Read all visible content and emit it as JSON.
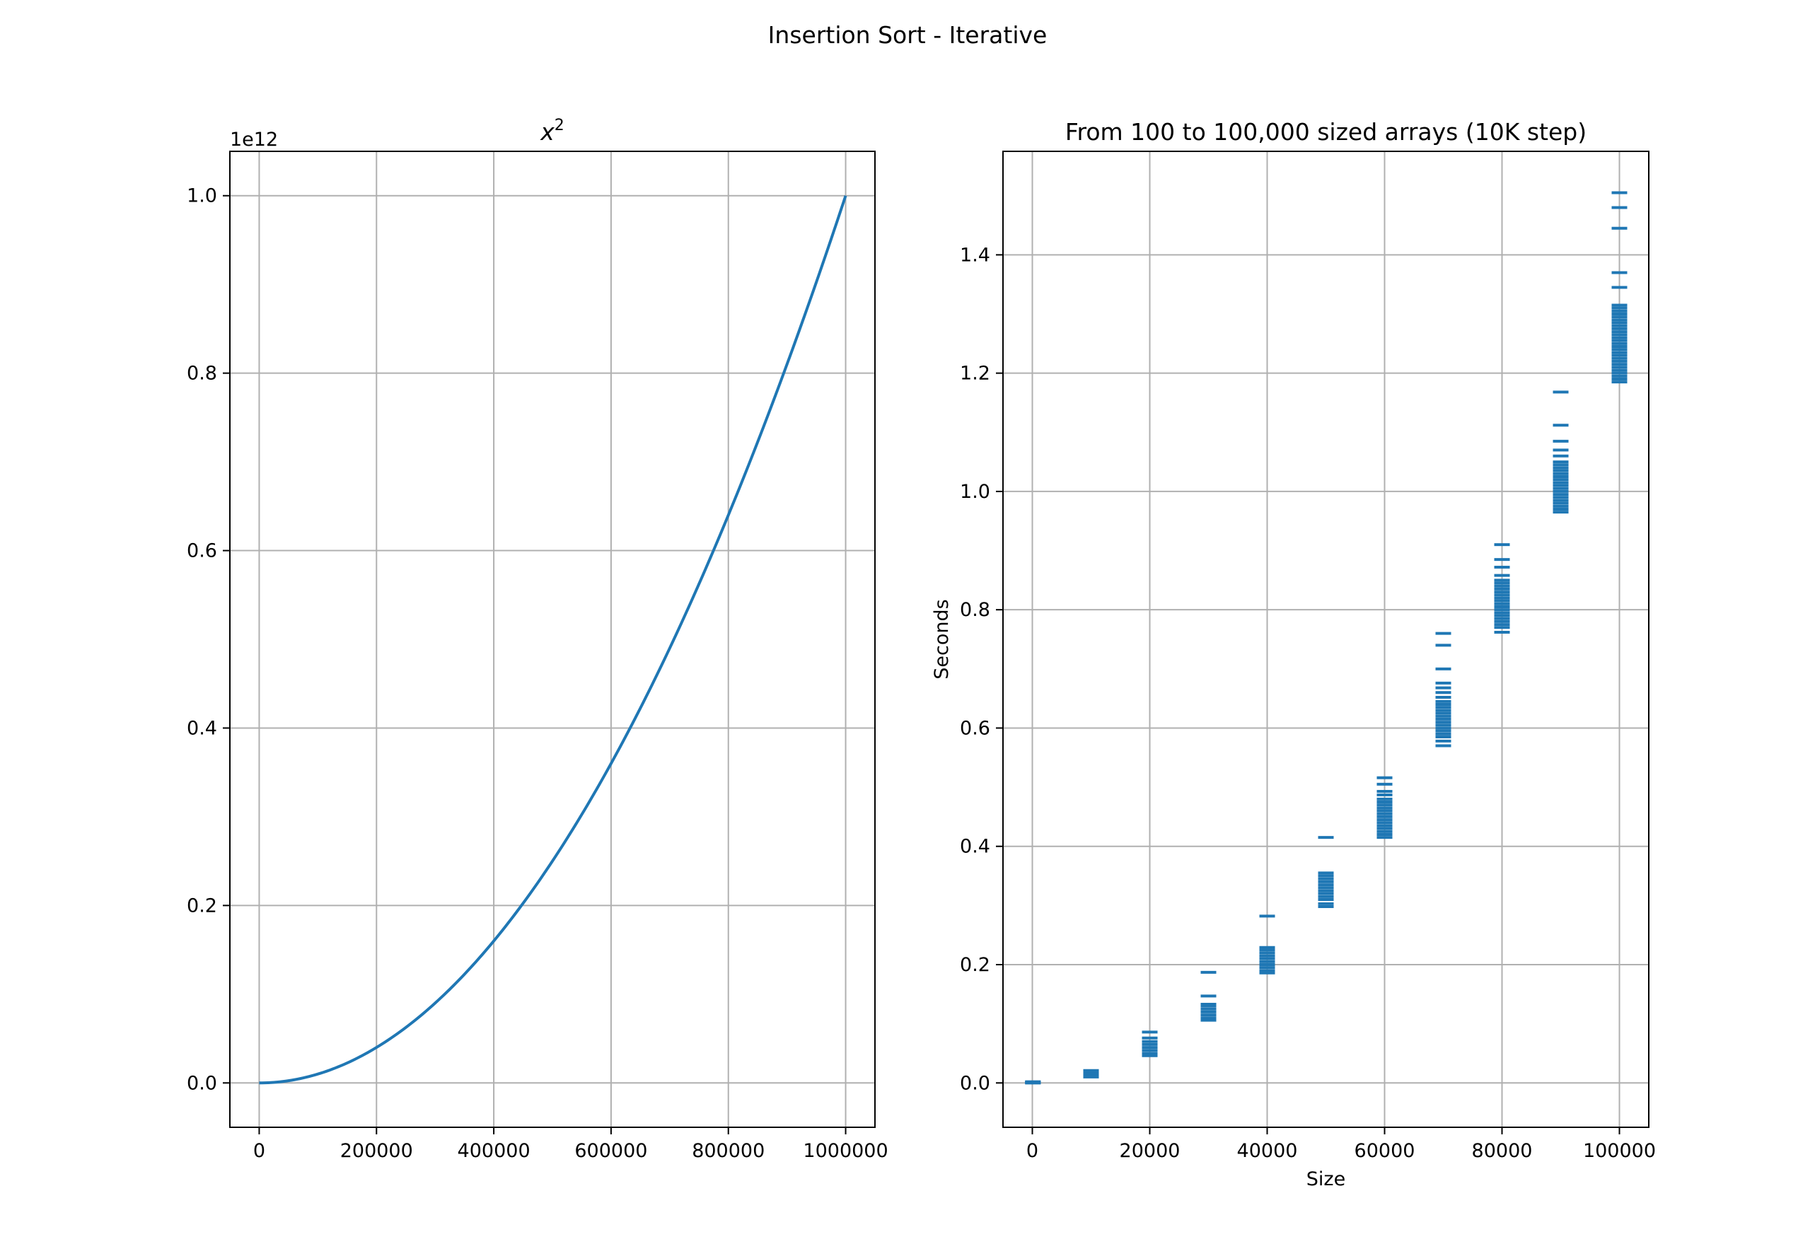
{
  "figure": {
    "title": "Insertion Sort - Iterative"
  },
  "chart_data": [
    {
      "type": "line",
      "title": "x²",
      "title_base": "x",
      "title_sup": "2",
      "xlabel": "",
      "ylabel": "",
      "y_offset_label": "1e12",
      "xlim": [
        -50000,
        1050000
      ],
      "ylim": [
        -0.05,
        1.05
      ],
      "xticks": [
        0,
        200000,
        400000,
        600000,
        800000,
        1000000
      ],
      "xtick_labels": [
        "0",
        "200000",
        "400000",
        "600000",
        "800000",
        "1000000"
      ],
      "yticks": [
        0.0,
        0.2,
        0.4,
        0.6,
        0.8,
        1.0
      ],
      "ytick_labels": [
        "0.0",
        "0.2",
        "0.4",
        "0.6",
        "0.8",
        "1.0"
      ],
      "grid": true,
      "color": "#1f77b4",
      "function": "x^2",
      "x_range": [
        0,
        1000000
      ]
    },
    {
      "type": "scatter",
      "title": "From 100 to 100,000 sized arrays (10K step)",
      "xlabel": "Size",
      "ylabel": "Seconds",
      "xlim": [
        -5000,
        105000
      ],
      "ylim": [
        -0.075,
        1.575
      ],
      "xticks": [
        0,
        20000,
        40000,
        60000,
        80000,
        100000
      ],
      "xtick_labels": [
        "0",
        "20000",
        "40000",
        "60000",
        "80000",
        "100000"
      ],
      "yticks": [
        0.0,
        0.2,
        0.4,
        0.6,
        0.8,
        1.0,
        1.2,
        1.4
      ],
      "ytick_labels": [
        "0.0",
        "0.2",
        "0.4",
        "0.6",
        "0.8",
        "1.0",
        "1.2",
        "1.4"
      ],
      "grid": true,
      "color": "#1f77b4",
      "marker": "_",
      "groups": [
        {
          "x": 100,
          "y": [
            0.0,
            0.001,
            0.002,
            0.001,
            0.0,
            0.001
          ]
        },
        {
          "x": 10000,
          "y": [
            0.01,
            0.013,
            0.016,
            0.019,
            0.021,
            0.015,
            0.012
          ]
        },
        {
          "x": 20000,
          "y": [
            0.046,
            0.05,
            0.055,
            0.06,
            0.065,
            0.07,
            0.076,
            0.086
          ]
        },
        {
          "x": 30000,
          "y": [
            0.106,
            0.11,
            0.115,
            0.12,
            0.125,
            0.13,
            0.133,
            0.147,
            0.187
          ]
        },
        {
          "x": 40000,
          "y": [
            0.186,
            0.19,
            0.195,
            0.2,
            0.205,
            0.21,
            0.215,
            0.22,
            0.225,
            0.229,
            0.282
          ]
        },
        {
          "x": 50000,
          "y": [
            0.298,
            0.303,
            0.31,
            0.315,
            0.32,
            0.325,
            0.33,
            0.335,
            0.34,
            0.345,
            0.35,
            0.355,
            0.415
          ]
        },
        {
          "x": 60000,
          "y": [
            0.415,
            0.42,
            0.425,
            0.43,
            0.435,
            0.44,
            0.445,
            0.45,
            0.455,
            0.46,
            0.465,
            0.47,
            0.475,
            0.48,
            0.487,
            0.493,
            0.505,
            0.516
          ]
        },
        {
          "x": 70000,
          "y": [
            0.57,
            0.578,
            0.585,
            0.59,
            0.595,
            0.6,
            0.605,
            0.61,
            0.615,
            0.62,
            0.625,
            0.63,
            0.635,
            0.64,
            0.645,
            0.652,
            0.66,
            0.668,
            0.676,
            0.7,
            0.74,
            0.76
          ]
        },
        {
          "x": 80000,
          "y": [
            0.762,
            0.77,
            0.775,
            0.78,
            0.785,
            0.79,
            0.795,
            0.8,
            0.805,
            0.81,
            0.815,
            0.82,
            0.825,
            0.83,
            0.835,
            0.84,
            0.845,
            0.85,
            0.858,
            0.872,
            0.885,
            0.91
          ]
        },
        {
          "x": 90000,
          "y": [
            0.965,
            0.97,
            0.975,
            0.98,
            0.985,
            0.99,
            0.995,
            1.0,
            1.005,
            1.01,
            1.015,
            1.02,
            1.025,
            1.03,
            1.035,
            1.04,
            1.045,
            1.05,
            1.06,
            1.07,
            1.085,
            1.112,
            1.168
          ]
        },
        {
          "x": 100000,
          "y": [
            1.185,
            1.19,
            1.195,
            1.2,
            1.205,
            1.21,
            1.215,
            1.22,
            1.225,
            1.23,
            1.235,
            1.24,
            1.245,
            1.25,
            1.255,
            1.26,
            1.265,
            1.27,
            1.275,
            1.28,
            1.285,
            1.29,
            1.295,
            1.3,
            1.305,
            1.31,
            1.315,
            1.345,
            1.37,
            1.445,
            1.48,
            1.505
          ]
        }
      ]
    }
  ]
}
